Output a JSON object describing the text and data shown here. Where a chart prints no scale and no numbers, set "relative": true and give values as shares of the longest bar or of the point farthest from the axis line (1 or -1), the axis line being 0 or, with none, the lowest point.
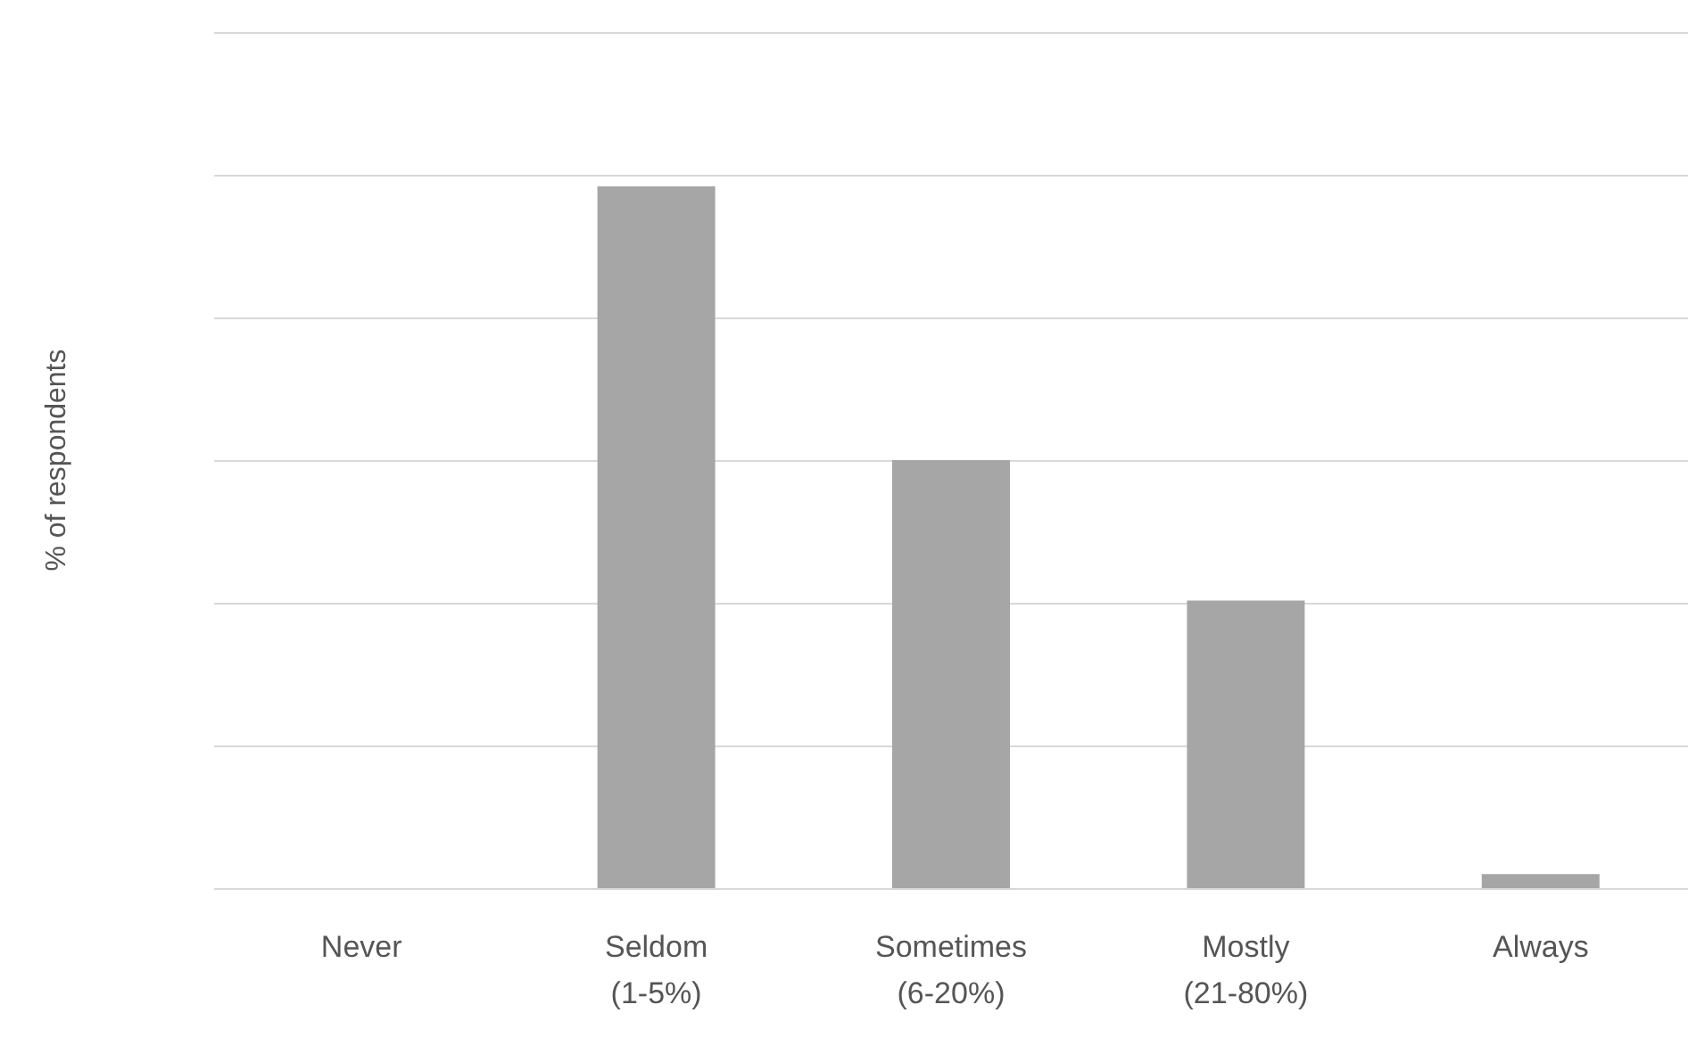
{
  "chart_data": {
    "type": "bar",
    "relative": true,
    "ylabel": "% of respondents",
    "categories": [
      "Never",
      "Seldom\n(1-5%)",
      "Sometimes\n(6-20%)",
      "Mostly\n(21-80%)",
      "Always"
    ],
    "values": [
      0,
      1,
      0.61,
      0.41,
      0.02
    ],
    "color": "#a6a6a6",
    "grid": true
  }
}
